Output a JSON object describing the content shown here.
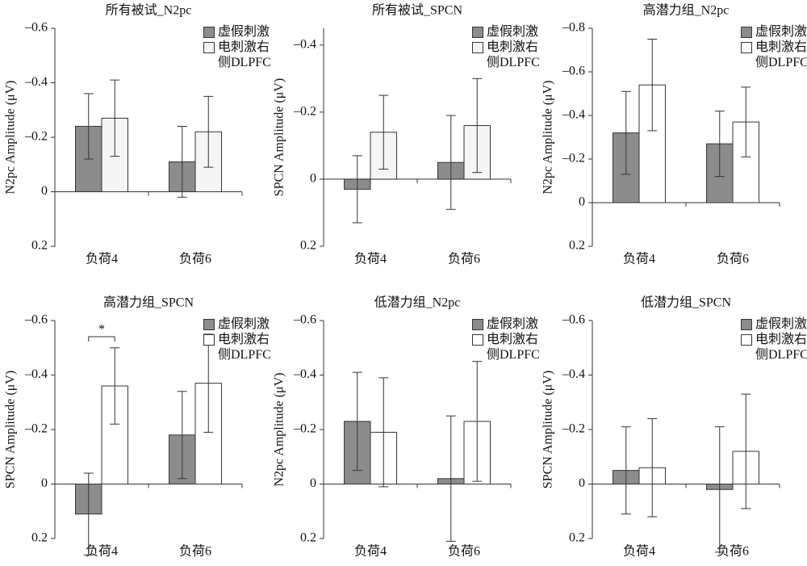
{
  "chart_data": [
    {
      "type": "bar",
      "title": "所有被试_N2pc",
      "y_label": "N2pc Amplitude (μV)",
      "categories": [
        "负荷4",
        "负荷6"
      ],
      "series": [
        {
          "name": "虚假刺激",
          "color": "#8c8c8c",
          "values": [
            -0.24,
            -0.11
          ],
          "errors": [
            0.12,
            0.13
          ]
        },
        {
          "name": "电刺激右侧DLPFC",
          "color": "#f5f5f5",
          "values": [
            -0.27,
            -0.22
          ],
          "errors": [
            0.14,
            0.13
          ]
        }
      ],
      "ylim": [
        -0.6,
        0.2
      ],
      "y_inverted": true,
      "yticks": [
        {
          "value": -0.6,
          "label": "–0.6"
        },
        {
          "value": -0.4,
          "label": "–0.4"
        },
        {
          "value": -0.2,
          "label": "–0.2"
        },
        0,
        0.2
      ]
    },
    {
      "type": "bar",
      "title": "所有被试_SPCN",
      "y_label": "SPCN Amplitude (μV)",
      "categories": [
        "负荷4",
        "负荷6"
      ],
      "series": [
        {
          "name": "虚假刺激",
          "color": "#8c8c8c",
          "values": [
            0.03,
            -0.05
          ],
          "errors": [
            0.1,
            0.14
          ]
        },
        {
          "name": "电刺激右侧DLPFC",
          "color": "#f5f5f5",
          "values": [
            -0.14,
            -0.16
          ],
          "errors": [
            0.11,
            0.14
          ]
        }
      ],
      "ylim": [
        -0.45,
        0.2
      ],
      "y_inverted": true,
      "yticks": [
        {
          "value": -0.4,
          "label": "–0.4"
        },
        {
          "value": -0.2,
          "label": "–0.2"
        },
        0,
        0.2
      ]
    },
    {
      "type": "bar",
      "title": "高潜力组_N2pc",
      "y_label": "N2pc Amplitude (μV)",
      "categories": [
        "负荷4",
        "负荷6"
      ],
      "series": [
        {
          "name": "虚假刺激",
          "color": "#8c8c8c",
          "values": [
            -0.32,
            -0.27
          ],
          "errors": [
            0.19,
            0.15
          ]
        },
        {
          "name": "电刺激右侧DLPFC",
          "color": "#ffffff",
          "values": [
            -0.54,
            -0.37
          ],
          "errors": [
            0.21,
            0.16
          ]
        }
      ],
      "ylim": [
        -0.8,
        0.2
      ],
      "y_inverted": true,
      "yticks": [
        {
          "value": -0.8,
          "label": "–0.8"
        },
        {
          "value": -0.6,
          "label": "–0.6"
        },
        {
          "value": -0.4,
          "label": "–0.4"
        },
        {
          "value": -0.2,
          "label": "–0.2"
        },
        0,
        0.2
      ]
    },
    {
      "type": "bar",
      "title": "高潜力组_SPCN",
      "y_label": "SPCN Amplitude (μV)",
      "categories": [
        "负荷4",
        "负荷6"
      ],
      "series": [
        {
          "name": "虚假刺激",
          "color": "#8c8c8c",
          "values": [
            0.11,
            -0.18
          ],
          "errors": [
            0.15,
            0.16
          ]
        },
        {
          "name": "电刺激右侧DLPFC",
          "color": "#ffffff",
          "values": [
            -0.36,
            -0.37
          ],
          "errors": [
            0.14,
            0.18
          ]
        }
      ],
      "ylim": [
        -0.6,
        0.2
      ],
      "y_inverted": true,
      "yticks": [
        {
          "value": -0.6,
          "label": "–0.6"
        },
        {
          "value": -0.4,
          "label": "–0.4"
        },
        {
          "value": -0.2,
          "label": "–0.2"
        },
        0,
        0.2
      ],
      "annotations": [
        "*"
      ]
    },
    {
      "type": "bar",
      "title": "低潜力组_N2pc",
      "y_label": "N2pc Amplitude (μV)",
      "categories": [
        "负荷4",
        "负荷6"
      ],
      "series": [
        {
          "name": "虚假刺激",
          "color": "#8c8c8c",
          "values": [
            -0.23,
            -0.02
          ],
          "errors": [
            0.18,
            0.23
          ]
        },
        {
          "name": "电刺激右侧DLPFC",
          "color": "#ffffff",
          "values": [
            -0.19,
            -0.23
          ],
          "errors": [
            0.2,
            0.22
          ]
        }
      ],
      "ylim": [
        -0.6,
        0.2
      ],
      "y_inverted": true,
      "yticks": [
        {
          "value": -0.6,
          "label": "–0.6"
        },
        {
          "value": -0.4,
          "label": "–0.4"
        },
        {
          "value": -0.2,
          "label": "–0.2"
        },
        0,
        0.2
      ]
    },
    {
      "type": "bar",
      "title": "低潜力组_SPCN",
      "y_label": "SPCN Amplitude (μV)",
      "categories": [
        "负荷4",
        "负荷6"
      ],
      "series": [
        {
          "name": "虚假刺激",
          "color": "#8c8c8c",
          "values": [
            -0.05,
            0.02
          ],
          "errors": [
            0.16,
            0.23
          ]
        },
        {
          "name": "电刺激右侧DLPFC",
          "color": "#ffffff",
          "values": [
            -0.06,
            -0.12
          ],
          "errors": [
            0.18,
            0.21
          ]
        }
      ],
      "ylim": [
        -0.6,
        0.2
      ],
      "y_inverted": true,
      "yticks": [
        {
          "value": -0.6,
          "label": "–0.6"
        },
        {
          "value": -0.4,
          "label": "–0.4"
        },
        {
          "value": -0.2,
          "label": "–0.2"
        },
        0,
        0.2
      ]
    }
  ]
}
